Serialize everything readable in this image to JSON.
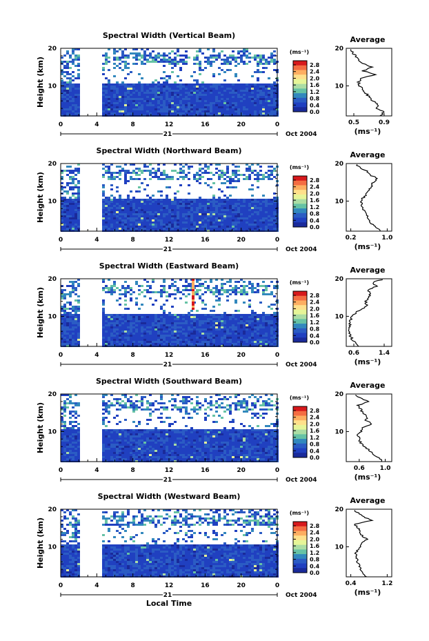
{
  "panels": [
    {
      "title": "Spectral Width (Vertical Beam)",
      "avg_title": "Average",
      "avg_ticks": [
        "0.5",
        "0.9"
      ],
      "avg_range": [
        0.4,
        1.0
      ],
      "avg_profile": [
        [
          2,
          0.85
        ],
        [
          3,
          0.9
        ],
        [
          4,
          0.8
        ],
        [
          5,
          0.82
        ],
        [
          6,
          0.75
        ],
        [
          7,
          0.7
        ],
        [
          8,
          0.66
        ],
        [
          9,
          0.62
        ],
        [
          10,
          0.58
        ],
        [
          11,
          0.56
        ],
        [
          12,
          0.6
        ],
        [
          13,
          0.78
        ],
        [
          14,
          0.62
        ],
        [
          15,
          0.75
        ],
        [
          16,
          0.6
        ],
        [
          17,
          0.55
        ],
        [
          18,
          0.52
        ],
        [
          19,
          0.48
        ],
        [
          20,
          0.46
        ]
      ]
    },
    {
      "title": "Spectral Width (Northward Beam)",
      "avg_title": "Average",
      "avg_ticks": [
        "0.2",
        "1.0"
      ],
      "avg_range": [
        0.1,
        1.1
      ],
      "avg_profile": [
        [
          2,
          0.85
        ],
        [
          3,
          0.75
        ],
        [
          4,
          0.65
        ],
        [
          5,
          0.6
        ],
        [
          6,
          0.55
        ],
        [
          7,
          0.5
        ],
        [
          8,
          0.47
        ],
        [
          9,
          0.45
        ],
        [
          10,
          0.42
        ],
        [
          11,
          0.48
        ],
        [
          12,
          0.55
        ],
        [
          13,
          0.6
        ],
        [
          14,
          0.65
        ],
        [
          15,
          0.68
        ],
        [
          16,
          0.8
        ],
        [
          17,
          0.62
        ],
        [
          18,
          0.55
        ],
        [
          19,
          0.4
        ],
        [
          20,
          0.3
        ]
      ]
    },
    {
      "title": "Spectral Width (Eastward Beam)",
      "avg_title": "Average",
      "avg_ticks": [
        "0.6",
        "1.4"
      ],
      "avg_range": [
        0.4,
        1.6
      ],
      "avg_profile": [
        [
          2,
          0.75
        ],
        [
          3,
          0.65
        ],
        [
          4,
          0.55
        ],
        [
          5,
          0.5
        ],
        [
          6,
          0.48
        ],
        [
          7,
          0.5
        ],
        [
          8,
          0.5
        ],
        [
          9,
          0.52
        ],
        [
          10,
          0.55
        ],
        [
          11,
          0.65
        ],
        [
          12,
          0.85
        ],
        [
          13,
          0.95
        ],
        [
          14,
          0.9
        ],
        [
          15,
          1.0
        ],
        [
          16,
          1.05
        ],
        [
          17,
          0.95
        ],
        [
          18,
          1.2
        ],
        [
          19,
          1.1
        ],
        [
          20,
          1.4
        ]
      ]
    },
    {
      "title": "Spectral Width (Southward Beam)",
      "avg_title": "Average",
      "avg_ticks": [
        "0.6",
        "1.0"
      ],
      "avg_range": [
        0.4,
        1.1
      ],
      "avg_profile": [
        [
          2,
          0.95
        ],
        [
          3,
          0.9
        ],
        [
          4,
          0.82
        ],
        [
          5,
          0.75
        ],
        [
          6,
          0.68
        ],
        [
          7,
          0.62
        ],
        [
          8,
          0.6
        ],
        [
          9,
          0.58
        ],
        [
          10,
          0.62
        ],
        [
          11,
          0.66
        ],
        [
          12,
          0.8
        ],
        [
          13,
          0.7
        ],
        [
          14,
          0.72
        ],
        [
          15,
          0.65
        ],
        [
          16,
          0.62
        ],
        [
          17,
          0.58
        ],
        [
          18,
          0.75
        ],
        [
          19,
          0.6
        ],
        [
          20,
          0.5
        ]
      ]
    },
    {
      "title": "Spectral Width (Westward Beam)",
      "avg_title": "Average",
      "avg_ticks": [
        "0.4",
        "1.2"
      ],
      "avg_range": [
        0.3,
        1.3
      ],
      "avg_profile": [
        [
          2,
          0.75
        ],
        [
          3,
          0.68
        ],
        [
          4,
          0.62
        ],
        [
          5,
          0.58
        ],
        [
          6,
          0.55
        ],
        [
          7,
          0.53
        ],
        [
          8,
          0.5
        ],
        [
          9,
          0.55
        ],
        [
          10,
          0.6
        ],
        [
          11,
          0.62
        ],
        [
          12,
          0.75
        ],
        [
          13,
          0.65
        ],
        [
          14,
          0.6
        ],
        [
          15,
          0.55
        ],
        [
          16,
          0.5
        ],
        [
          17,
          0.85
        ],
        [
          18,
          0.7
        ],
        [
          19,
          0.55
        ],
        [
          20,
          0.45
        ]
      ]
    }
  ],
  "axes": {
    "y_label": "Height (km)",
    "y_ticks": [
      "20",
      "10"
    ],
    "x_ticks": [
      "0",
      "4",
      "8",
      "12",
      "16",
      "20",
      "0"
    ],
    "day_label": "21",
    "date_label": "Oct 2004",
    "x_label": "Local Time",
    "avg_unit": "(ms⁻¹)"
  },
  "colorbar": {
    "unit": "(ms⁻¹)",
    "ticks": [
      "2.8",
      "2.4",
      "2.0",
      "1.6",
      "1.2",
      "0.8",
      "0.4",
      "0.0"
    ],
    "colors": [
      "#d7191c",
      "#f46d43",
      "#fdae61",
      "#fee08b",
      "#e6f598",
      "#abdda4",
      "#66c2a5",
      "#3288bd",
      "#2b5cc4",
      "#2040c0",
      "#1a2a9a"
    ]
  },
  "chart_data": [
    {
      "type": "heatmap",
      "title": "Spectral Width (Vertical Beam)",
      "xlabel": "Local Time",
      "ylabel": "Height (km)",
      "xlim": [
        0,
        24
      ],
      "ylim": [
        2,
        20
      ],
      "zlim": [
        0.0,
        3.0
      ],
      "gap_hours": [
        2.3,
        4.5
      ],
      "zunit": "ms-1"
    },
    {
      "type": "heatmap",
      "title": "Spectral Width (Northward Beam)",
      "xlabel": "Local Time",
      "ylabel": "Height (km)",
      "xlim": [
        0,
        24
      ],
      "ylim": [
        2,
        20
      ],
      "zlim": [
        0.0,
        3.0
      ],
      "gap_hours": [
        2.3,
        4.5
      ],
      "zunit": "ms-1"
    },
    {
      "type": "heatmap",
      "title": "Spectral Width (Eastward Beam)",
      "xlabel": "Local Time",
      "ylabel": "Height (km)",
      "xlim": [
        0,
        24
      ],
      "ylim": [
        2,
        20
      ],
      "zlim": [
        0.0,
        3.0
      ],
      "gap_hours": [
        2.3,
        4.5
      ],
      "zunit": "ms-1"
    },
    {
      "type": "heatmap",
      "title": "Spectral Width (Southward Beam)",
      "xlabel": "Local Time",
      "ylabel": "Height (km)",
      "xlim": [
        0,
        24
      ],
      "ylim": [
        2,
        20
      ],
      "zlim": [
        0.0,
        3.0
      ],
      "gap_hours": [
        2.3,
        4.5
      ],
      "zunit": "ms-1"
    },
    {
      "type": "heatmap",
      "title": "Spectral Width (Westward Beam)",
      "xlabel": "Local Time",
      "ylabel": "Height (km)",
      "xlim": [
        0,
        24
      ],
      "ylim": [
        2,
        20
      ],
      "zlim": [
        0.0,
        3.0
      ],
      "gap_hours": [
        2.3,
        4.5
      ],
      "zunit": "ms-1"
    }
  ]
}
